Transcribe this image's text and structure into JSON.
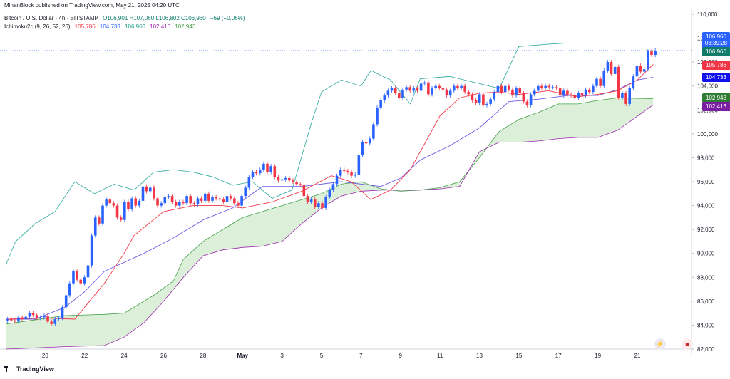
{
  "header": {
    "publisher_line": "MihanBlock published on TradingView.com, May 21, 2025 04:20 UTC"
  },
  "legend": {
    "symbol": "Bitcoin / U.S. Dollar · 4h · BITSTAMP",
    "ohlc": "O106,901  H107,060  L106,802  C106,960",
    "change": "+69 (+0.06%)",
    "indicator_name": "Ichimoku2c (9, 26, 52, 26)",
    "indicator_values": [
      "105,786",
      "104,733",
      "106,960",
      "102,416",
      "102,943"
    ],
    "indicator_colors": [
      "#f23645",
      "#2962ff",
      "#089981",
      "#9c27b0",
      "#43a047"
    ]
  },
  "price_tags": [
    {
      "label": "106,960",
      "color": "#2962ff"
    },
    {
      "label": "03:39:28",
      "color": "#2962ff"
    },
    {
      "label": "106,960",
      "color": "#0f7b6b"
    },
    {
      "label": "105,786",
      "color": "#f23645"
    },
    {
      "label": "104,733",
      "color": "#1111ee"
    },
    {
      "label": "102,943",
      "color": "#2e7d32"
    },
    {
      "label": "102,416",
      "color": "#7b1fa2"
    }
  ],
  "branding": {
    "label": "TradingView"
  },
  "colors": {
    "up": "#2962ff",
    "down": "#f23645",
    "tenkan": "#f23645",
    "kijun": "#6c5ce7",
    "chikou": "#26a69a",
    "cloud_fill": "#dcefd9",
    "spanA": "#43a047",
    "spanB": "#9c27b0"
  },
  "chart_data": {
    "type": "candlestick",
    "ylim": [
      82000,
      110000
    ],
    "yticks": [
      "110,000",
      "108,000",
      "106,000",
      "104,000",
      "102,000",
      "100,000",
      "98,000",
      "96,000",
      "94,000",
      "92,000",
      "90,000",
      "88,000",
      "86,000",
      "84,000",
      "82,000"
    ],
    "ytick_values": [
      110000,
      108000,
      106000,
      104000,
      102000,
      100000,
      98000,
      96000,
      94000,
      92000,
      90000,
      88000,
      86000,
      84000,
      82000
    ],
    "xtick_labels": [
      "20",
      "22",
      "24",
      "26",
      "28",
      "May",
      "3",
      "5",
      "7",
      "9",
      "11",
      "13",
      "15",
      "17",
      "19",
      "21"
    ],
    "xtick_days": [
      2,
      4,
      6,
      8,
      10,
      12,
      14,
      16,
      18,
      20,
      22,
      24,
      26,
      28,
      30,
      32
    ],
    "x_range_days": [
      0,
      33.3
    ],
    "last_close": 106960,
    "close": [
      84500,
      84400,
      84300,
      84650,
      84500,
      84700,
      85000,
      84850,
      84600,
      84650,
      84800,
      84300,
      84100,
      84500,
      84600,
      85500,
      86500,
      87500,
      88500,
      87800,
      87500,
      88000,
      89000,
      91500,
      93000,
      92500,
      94000,
      94500,
      94200,
      94000,
      93000,
      92800,
      94300,
      93700,
      94600,
      94000,
      94400,
      95600,
      95200,
      95500,
      94600,
      94000,
      94200,
      94700,
      94800,
      94300,
      94000,
      94300,
      94200,
      94800,
      94200,
      94100,
      94600,
      94400,
      95000,
      94400,
      94700,
      94600,
      94500,
      94300,
      94800,
      94600,
      94200,
      94000,
      94800,
      95500,
      96400,
      96800,
      96700,
      97000,
      97500,
      96800,
      97300,
      96400,
      96100,
      96200,
      96300,
      96100,
      96000,
      95800,
      95700,
      94800,
      94300,
      94500,
      93900,
      94200,
      93800,
      94700,
      95300,
      95800,
      96500,
      97000,
      96900,
      96800,
      96500,
      96600,
      98200,
      99300,
      99200,
      99600,
      100800,
      102200,
      102800,
      103200,
      103600,
      103800,
      103400,
      103000,
      103700,
      103900,
      103600,
      103800,
      103600,
      104200,
      104300,
      103300,
      103800,
      104000,
      103800,
      103700,
      103200,
      103600,
      104000,
      103800,
      104000,
      103500,
      103300,
      102800,
      102600,
      103300,
      102400,
      102500,
      102900,
      103500,
      104000,
      103500,
      104000,
      103700,
      103200,
      103800,
      103400,
      102700,
      102400,
      103300,
      103600,
      104000,
      103800,
      104000,
      103900,
      103900,
      103800,
      103200,
      103600,
      103300,
      103200,
      103000,
      103400,
      103200,
      103700,
      103500,
      104000,
      104600,
      104000,
      105300,
      106000,
      105000,
      105600,
      103000,
      103400,
      102500,
      103800,
      104800,
      105700,
      105200,
      105400,
      106900,
      106600,
      106960
    ],
    "tenkan": [
      [
        0,
        84500
      ],
      [
        2,
        84600
      ],
      [
        3.5,
        84500
      ],
      [
        5,
        87500
      ],
      [
        6,
        90000
      ],
      [
        6.5,
        91500
      ],
      [
        8,
        93500
      ],
      [
        9.5,
        94000
      ],
      [
        11,
        94000
      ],
      [
        12,
        93800
      ],
      [
        13.5,
        94300
      ],
      [
        15,
        95200
      ],
      [
        16.5,
        96500
      ],
      [
        17.5,
        96000
      ],
      [
        18.5,
        94500
      ],
      [
        19.5,
        95300
      ],
      [
        20.5,
        97000
      ],
      [
        21.5,
        100000
      ],
      [
        22,
        101500
      ],
      [
        23,
        103000
      ],
      [
        24,
        103400
      ],
      [
        25,
        103500
      ],
      [
        26,
        103300
      ],
      [
        27.5,
        103600
      ],
      [
        29,
        103100
      ],
      [
        30,
        103300
      ],
      [
        31,
        103600
      ],
      [
        32,
        104500
      ],
      [
        32.8,
        105800
      ]
    ],
    "kijun": [
      [
        0,
        84500
      ],
      [
        1.5,
        84500
      ],
      [
        3,
        85500
      ],
      [
        4,
        86800
      ],
      [
        5,
        88500
      ],
      [
        7,
        90000
      ],
      [
        8.5,
        91300
      ],
      [
        10,
        92800
      ],
      [
        11.5,
        93800
      ],
      [
        13,
        95600
      ],
      [
        15,
        95600
      ],
      [
        17,
        96000
      ],
      [
        19,
        95600
      ],
      [
        20,
        96300
      ],
      [
        21,
        97800
      ],
      [
        22.5,
        99000
      ],
      [
        24,
        100500
      ],
      [
        25.5,
        102700
      ],
      [
        27,
        102900
      ],
      [
        28.5,
        103200
      ],
      [
        30,
        103200
      ],
      [
        31,
        103700
      ],
      [
        32,
        104500
      ],
      [
        32.8,
        104733
      ]
    ],
    "chikou": [
      [
        0,
        89000
      ],
      [
        0.5,
        91000
      ],
      [
        1.5,
        92500
      ],
      [
        2.5,
        93500
      ],
      [
        3.5,
        96000
      ],
      [
        4.5,
        95000
      ],
      [
        5.5,
        95800
      ],
      [
        6.5,
        95300
      ],
      [
        7.5,
        96800
      ],
      [
        8.5,
        97000
      ],
      [
        9.5,
        96800
      ],
      [
        10.5,
        96400
      ],
      [
        11.5,
        95700
      ],
      [
        12.5,
        96000
      ],
      [
        13.5,
        94600
      ],
      [
        14.5,
        95300
      ],
      [
        15.5,
        101000
      ],
      [
        16,
        103500
      ],
      [
        17,
        104500
      ],
      [
        18,
        104000
      ],
      [
        18.5,
        105300
      ],
      [
        19.5,
        104500
      ],
      [
        20.5,
        102500
      ],
      [
        21,
        104600
      ],
      [
        22.5,
        104800
      ],
      [
        24,
        104200
      ],
      [
        25,
        103800
      ],
      [
        26,
        107300
      ],
      [
        27.5,
        107500
      ],
      [
        28.5,
        107600
      ]
    ],
    "span_a": [
      [
        0,
        84100
      ],
      [
        3,
        84800
      ],
      [
        5,
        84900
      ],
      [
        6,
        85000
      ],
      [
        7.5,
        86500
      ],
      [
        8.5,
        87700
      ],
      [
        9,
        89500
      ],
      [
        10,
        91000
      ],
      [
        11,
        92000
      ],
      [
        12,
        93000
      ],
      [
        13,
        93500
      ],
      [
        14,
        94000
      ],
      [
        15,
        94500
      ],
      [
        16,
        95000
      ],
      [
        17,
        95800
      ],
      [
        18,
        96000
      ],
      [
        19,
        95400
      ],
      [
        20,
        95200
      ],
      [
        21,
        95300
      ],
      [
        22,
        95500
      ],
      [
        23,
        96000
      ],
      [
        24,
        98000
      ],
      [
        25,
        100200
      ],
      [
        26,
        101200
      ],
      [
        27,
        101800
      ],
      [
        28,
        102500
      ],
      [
        29,
        102500
      ],
      [
        30,
        102800
      ],
      [
        31,
        103000
      ],
      [
        32.8,
        102943
      ]
    ],
    "span_b": [
      [
        0,
        82000
      ],
      [
        3,
        82200
      ],
      [
        5,
        82300
      ],
      [
        6,
        83000
      ],
      [
        7,
        84200
      ],
      [
        8,
        86000
      ],
      [
        9,
        88000
      ],
      [
        10,
        89800
      ],
      [
        11,
        90300
      ],
      [
        12,
        90500
      ],
      [
        13,
        90600
      ],
      [
        14,
        91000
      ],
      [
        15,
        92500
      ],
      [
        16,
        93800
      ],
      [
        17,
        94800
      ],
      [
        18,
        95200
      ],
      [
        19,
        95300
      ],
      [
        20,
        95300
      ],
      [
        21,
        95300
      ],
      [
        22,
        95400
      ],
      [
        23,
        95600
      ],
      [
        24,
        98500
      ],
      [
        25,
        99300
      ],
      [
        26,
        99300
      ],
      [
        27,
        99400
      ],
      [
        28,
        99600
      ],
      [
        29,
        99700
      ],
      [
        30,
        99700
      ],
      [
        31,
        100300
      ],
      [
        32.8,
        102416
      ]
    ]
  }
}
